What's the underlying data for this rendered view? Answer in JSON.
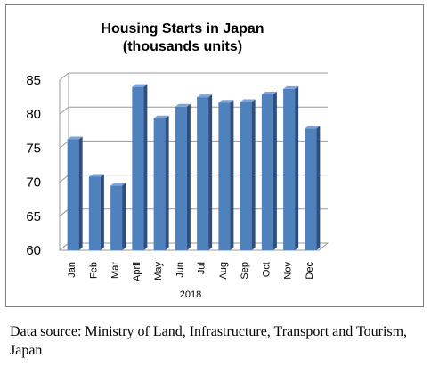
{
  "chart_data": {
    "type": "bar",
    "title": [
      "Housing Starts in Japan",
      "(thousands units)"
    ],
    "categories": [
      "Jan",
      "Feb",
      "Mar",
      "April",
      "May",
      "Jun",
      "Jul",
      "Aug",
      "Sep",
      "Oct",
      "Nov",
      "Dec"
    ],
    "values": [
      76.3,
      70.8,
      69.5,
      84.0,
      79.4,
      81.1,
      82.5,
      81.7,
      81.8,
      82.9,
      83.7,
      77.9
    ],
    "xlabel": "2018",
    "ylabel": "",
    "ylim": [
      60,
      85
    ],
    "yticks": [
      "60",
      "65",
      "70",
      "75",
      "80",
      "85"
    ],
    "grid": true,
    "bar_color": "#4f81bd"
  },
  "footer": {
    "source": "Data source: Ministry of Land, Infrastructure, Transport and Tourism, Japan"
  }
}
